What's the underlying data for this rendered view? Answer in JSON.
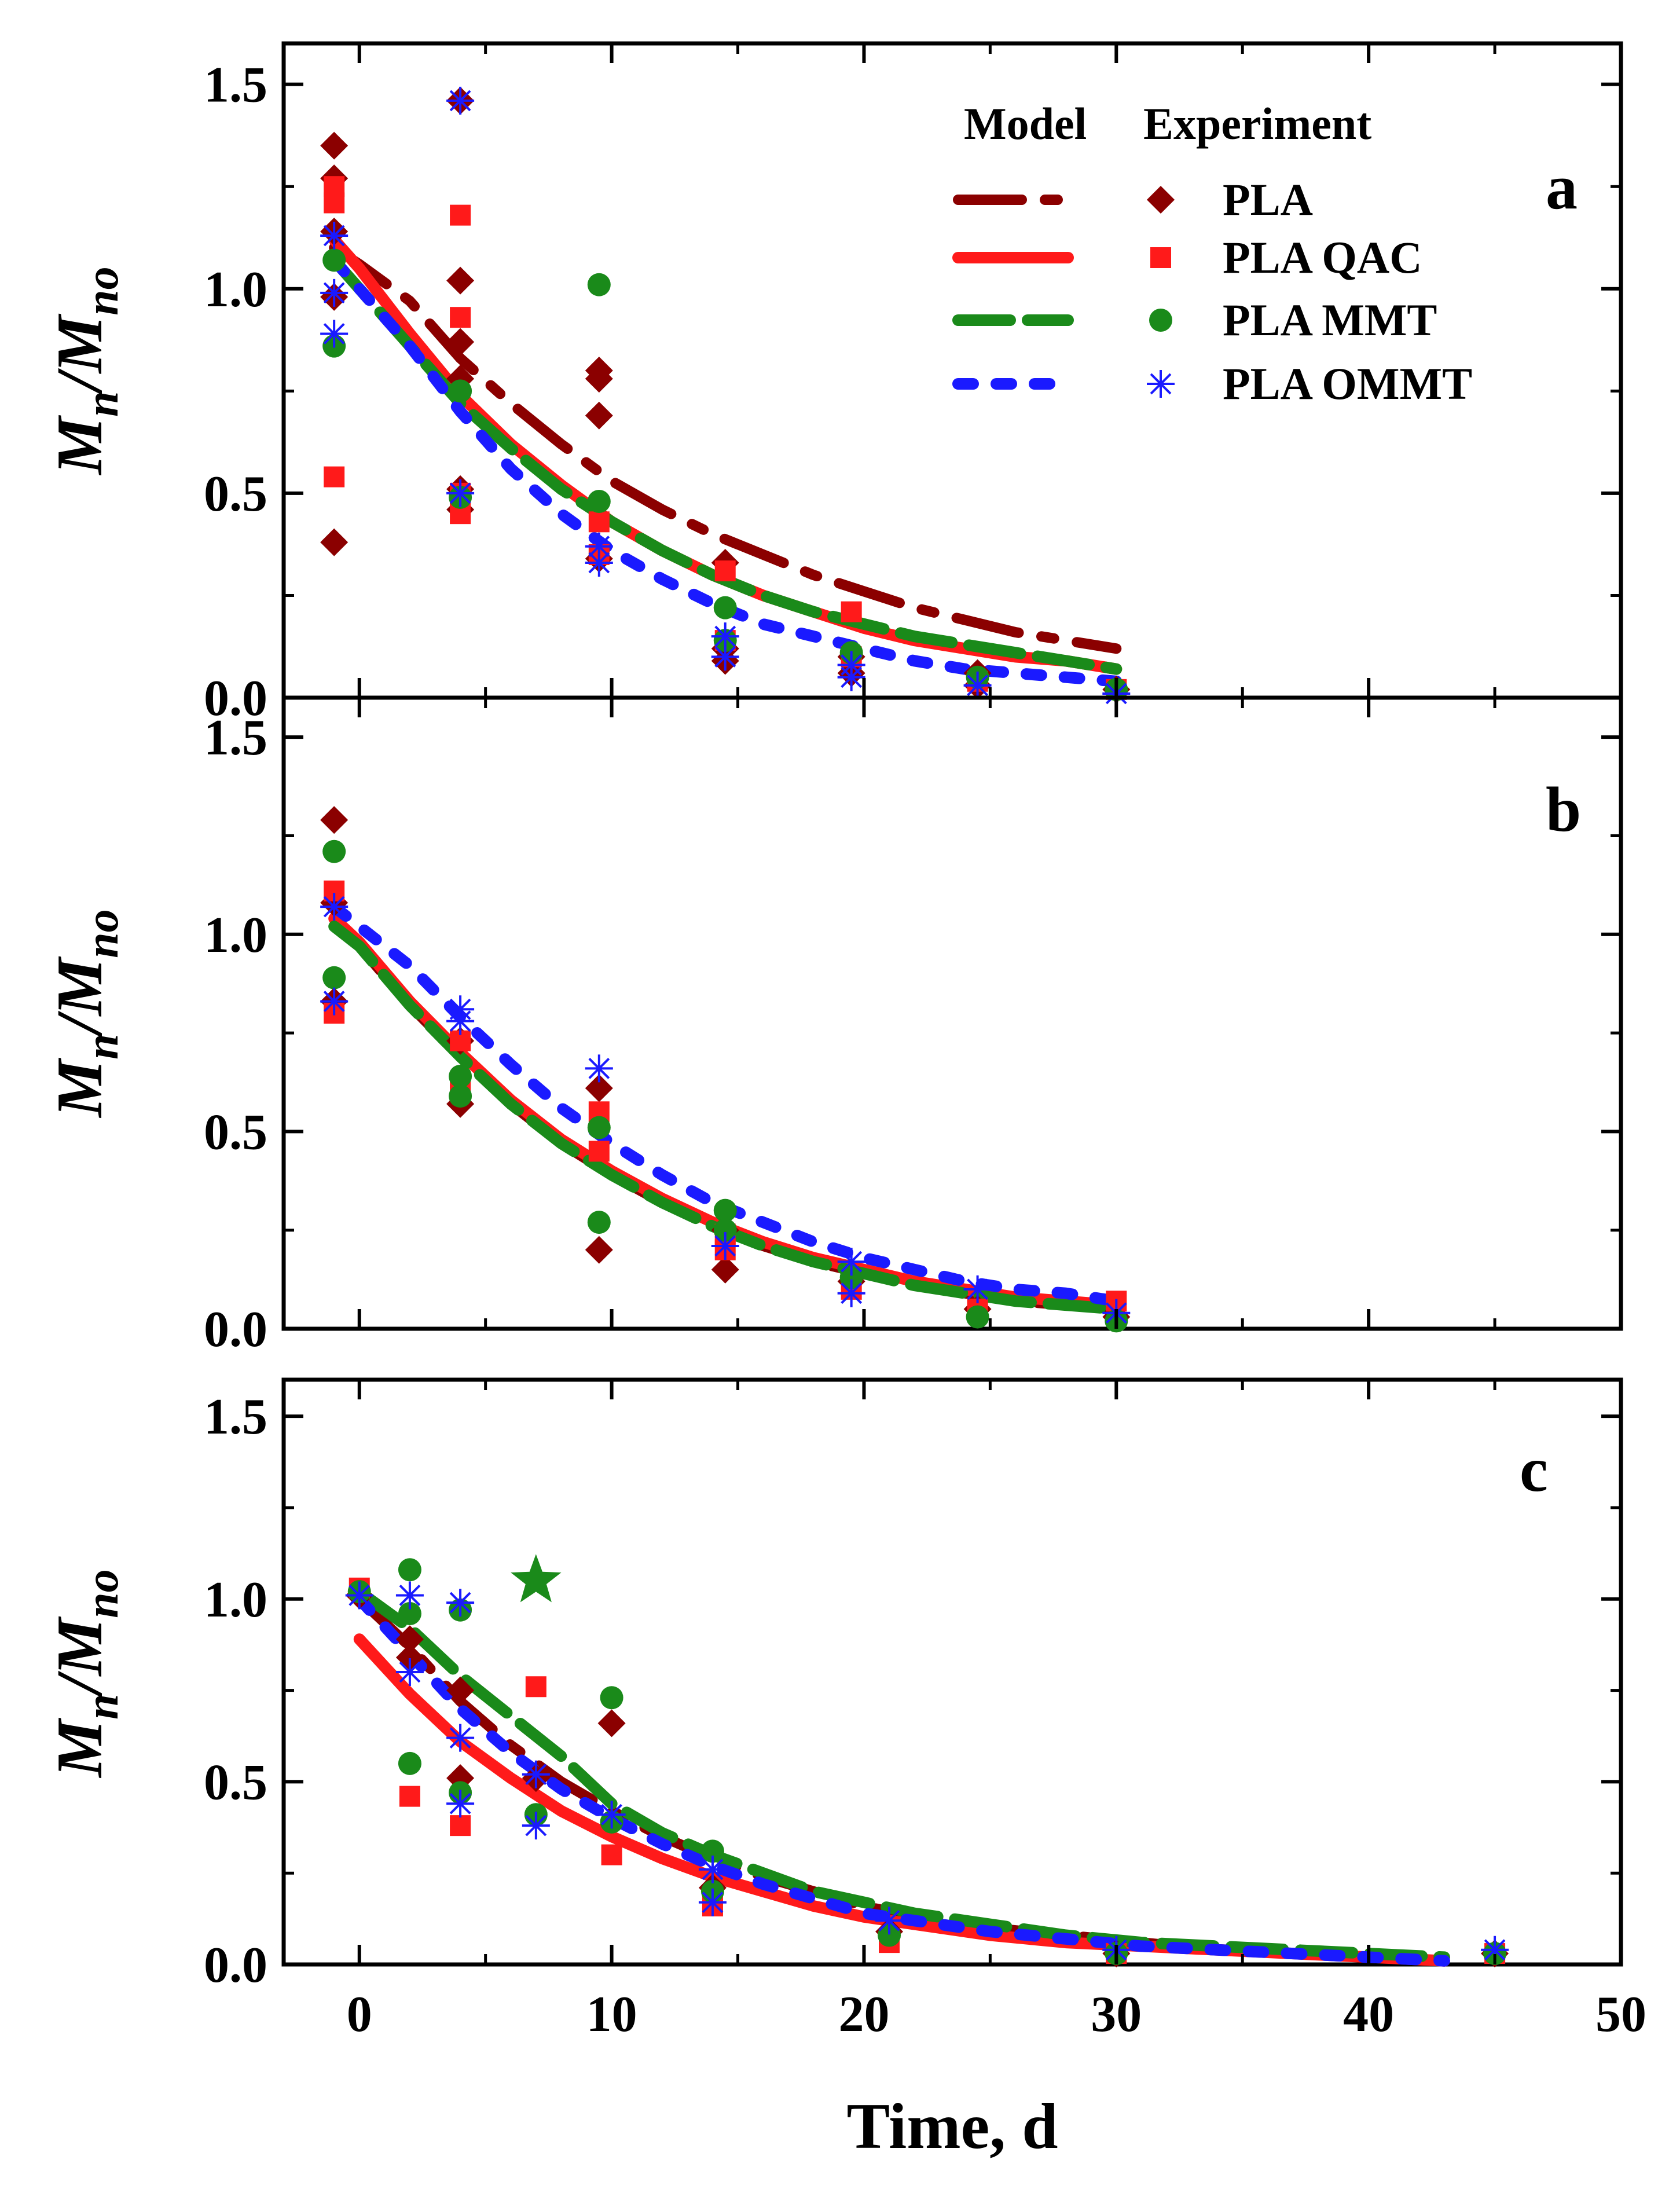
{
  "figure": {
    "xlabel": "Time, d",
    "ylabel_main": "M",
    "ylabel_sub1": "n",
    "ylabel_mid": "/M",
    "ylabel_sub2": "no",
    "legend": {
      "model_header": "Model",
      "experiment_header": "Experiment",
      "placement": "top-right of panel a"
    }
  },
  "colors": {
    "PLA": "#8b0000",
    "PLA QAC": "#ff1a1a",
    "PLA MMT": "#1a8a1a",
    "PLA OMMT": "#1a1aff"
  },
  "chart_data": [
    {
      "type": "scatter",
      "panel": "a",
      "xlim": [
        -3,
        50
      ],
      "ylim": [
        0,
        1.6
      ],
      "xticks": [
        0,
        10,
        20,
        30,
        40,
        50
      ],
      "yticks": [
        0.0,
        0.5,
        1.0,
        1.5
      ],
      "xtick_labels_visible": false,
      "grid": false,
      "series": [
        {
          "name": "PLA",
          "marker": "diamond",
          "x": [
            -1,
            -1,
            -1,
            -1,
            -1,
            4,
            4,
            4,
            4,
            4,
            4,
            9.5,
            9.5,
            9.5,
            9.5,
            14.5,
            14.5,
            14.5,
            19.5,
            19.5,
            24.5,
            24.5,
            30
          ],
          "y": [
            1.35,
            1.27,
            1.14,
            0.98,
            0.38,
            1.46,
            1.02,
            0.87,
            0.78,
            0.51,
            0.46,
            0.8,
            0.78,
            0.69,
            0.34,
            0.33,
            0.12,
            0.09,
            0.1,
            0.06,
            0.06,
            0.03,
            0.02
          ],
          "model": {
            "x": [
              -1,
              0,
              2,
              4,
              6,
              8,
              10,
              12,
              14,
              16,
              18,
              20,
              22,
              24,
              26,
              28,
              30
            ],
            "y": [
              1.1,
              1.06,
              0.97,
              0.83,
              0.72,
              0.62,
              0.53,
              0.46,
              0.4,
              0.35,
              0.3,
              0.26,
              0.22,
              0.19,
              0.16,
              0.14,
              0.12
            ]
          }
        },
        {
          "name": "PLA QAC",
          "marker": "square",
          "x": [
            -1,
            -1,
            -1,
            4,
            4,
            4,
            4,
            9.5,
            9.5,
            14.5,
            14.5,
            19.5,
            19.5,
            24.5,
            30
          ],
          "y": [
            1.25,
            1.21,
            0.54,
            1.18,
            0.93,
            0.5,
            0.45,
            0.43,
            0.35,
            0.31,
            0.14,
            0.21,
            0.1,
            0.04,
            0.02
          ],
          "model": {
            "x": [
              -1,
              0,
              2,
              4,
              6,
              8,
              10,
              12,
              14,
              16,
              18,
              20,
              22,
              24,
              26,
              28,
              30
            ],
            "y": [
              1.12,
              1.05,
              0.89,
              0.74,
              0.62,
              0.52,
              0.43,
              0.36,
              0.3,
              0.25,
              0.21,
              0.17,
              0.14,
              0.12,
              0.1,
              0.09,
              0.07
            ]
          }
        },
        {
          "name": "PLA MMT",
          "marker": "circle",
          "x": [
            -1,
            -1,
            4,
            4,
            9.5,
            9.5,
            14.5,
            14.5,
            19.5,
            24.5,
            30
          ],
          "y": [
            1.07,
            0.86,
            0.75,
            0.49,
            1.01,
            0.48,
            0.22,
            0.14,
            0.11,
            0.05,
            0.02
          ],
          "model": {
            "x": [
              -1,
              0,
              2,
              4,
              6,
              8,
              10,
              12,
              14,
              16,
              18,
              20,
              22,
              24,
              26,
              28,
              30
            ],
            "y": [
              1.07,
              1.0,
              0.86,
              0.72,
              0.61,
              0.51,
              0.43,
              0.36,
              0.3,
              0.25,
              0.21,
              0.18,
              0.15,
              0.13,
              0.11,
              0.09,
              0.07
            ]
          }
        },
        {
          "name": "PLA OMMT",
          "marker": "asterisk",
          "x": [
            -1,
            -1,
            -1,
            4,
            4,
            9.5,
            9.5,
            14.5,
            14.5,
            19.5,
            19.5,
            24.5,
            30
          ],
          "y": [
            1.13,
            0.99,
            0.89,
            1.46,
            0.5,
            0.37,
            0.33,
            0.15,
            0.1,
            0.08,
            0.05,
            0.03,
            0.01
          ],
          "model": {
            "x": [
              -1,
              0,
              2,
              4,
              6,
              8,
              10,
              12,
              14,
              16,
              18,
              20,
              22,
              24,
              26,
              28,
              30
            ],
            "y": [
              1.07,
              1.0,
              0.86,
              0.7,
              0.56,
              0.45,
              0.36,
              0.29,
              0.23,
              0.18,
              0.15,
              0.12,
              0.09,
              0.07,
              0.06,
              0.05,
              0.04
            ]
          }
        }
      ]
    },
    {
      "type": "scatter",
      "panel": "b",
      "xlim": [
        -3,
        50
      ],
      "ylim": [
        0,
        1.6
      ],
      "xticks": [
        0,
        10,
        20,
        30,
        40,
        50
      ],
      "yticks": [
        0.0,
        0.5,
        1.0,
        1.5
      ],
      "xtick_labels_visible": false,
      "grid": false,
      "series": [
        {
          "name": "PLA",
          "marker": "diamond",
          "x": [
            -1,
            -1,
            -1,
            4,
            4,
            9.5,
            9.5,
            14.5,
            14.5,
            19.5,
            24.5,
            30
          ],
          "y": [
            1.29,
            1.08,
            0.83,
            0.73,
            0.57,
            0.61,
            0.2,
            0.25,
            0.15,
            0.12,
            0.05,
            0.03
          ],
          "model": {
            "x": [
              -1,
              0,
              2,
              4,
              6,
              8,
              10,
              12,
              14,
              16,
              18,
              20,
              22,
              24,
              26,
              28,
              30
            ],
            "y": [
              1.02,
              0.97,
              0.82,
              0.69,
              0.57,
              0.47,
              0.39,
              0.32,
              0.26,
              0.21,
              0.17,
              0.14,
              0.11,
              0.09,
              0.07,
              0.06,
              0.05
            ]
          }
        },
        {
          "name": "PLA QAC",
          "marker": "square",
          "x": [
            -1,
            -1,
            4,
            4,
            9.5,
            9.5,
            14.5,
            14.5,
            19.5,
            24.5,
            30
          ],
          "y": [
            1.11,
            0.8,
            0.73,
            0.62,
            0.55,
            0.45,
            0.24,
            0.2,
            0.1,
            0.05,
            0.07
          ],
          "model": {
            "x": [
              -1,
              0,
              2,
              4,
              6,
              8,
              10,
              12,
              14,
              16,
              18,
              20,
              22,
              24,
              26,
              28,
              30
            ],
            "y": [
              1.04,
              0.98,
              0.83,
              0.7,
              0.58,
              0.48,
              0.4,
              0.33,
              0.27,
              0.22,
              0.18,
              0.15,
              0.12,
              0.1,
              0.08,
              0.07,
              0.06
            ]
          }
        },
        {
          "name": "PLA MMT",
          "marker": "circle",
          "x": [
            -1,
            -1,
            4,
            4,
            9.5,
            9.5,
            14.5,
            14.5,
            19.5,
            24.5,
            30
          ],
          "y": [
            1.21,
            0.89,
            0.64,
            0.59,
            0.51,
            0.27,
            0.3,
            0.25,
            0.13,
            0.03,
            0.02
          ],
          "model": {
            "x": [
              -1,
              0,
              2,
              4,
              6,
              8,
              10,
              12,
              14,
              16,
              18,
              20,
              22,
              24,
              26,
              28,
              30
            ],
            "y": [
              1.02,
              0.97,
              0.82,
              0.69,
              0.57,
              0.47,
              0.39,
              0.32,
              0.26,
              0.21,
              0.17,
              0.14,
              0.11,
              0.09,
              0.07,
              0.06,
              0.05
            ]
          }
        },
        {
          "name": "PLA OMMT",
          "marker": "asterisk",
          "x": [
            -1,
            -1,
            4,
            4,
            9.5,
            14.5,
            19.5,
            19.5,
            24.5,
            30
          ],
          "y": [
            1.07,
            0.83,
            0.81,
            0.78,
            0.66,
            0.21,
            0.17,
            0.09,
            0.1,
            0.04
          ],
          "model": {
            "x": [
              -1,
              0,
              2,
              4,
              6,
              8,
              10,
              12,
              14,
              16,
              18,
              20,
              22,
              24,
              26,
              28,
              30
            ],
            "y": [
              1.07,
              1.02,
              0.92,
              0.79,
              0.67,
              0.56,
              0.47,
              0.39,
              0.32,
              0.27,
              0.22,
              0.18,
              0.15,
              0.12,
              0.1,
              0.09,
              0.07
            ]
          }
        }
      ]
    },
    {
      "type": "scatter",
      "panel": "c",
      "xlim": [
        -3,
        50
      ],
      "ylim": [
        0,
        1.6
      ],
      "xticks": [
        0,
        10,
        20,
        30,
        40,
        50
      ],
      "yticks": [
        0.0,
        0.5,
        1.0,
        1.5
      ],
      "xtick_labels": [
        "0",
        "10",
        "20",
        "30",
        "40",
        "50"
      ],
      "grid": false,
      "annotations": [
        {
          "marker": "star",
          "x": 7,
          "y": 1.05,
          "color": "#1a8a1a"
        }
      ],
      "series": [
        {
          "name": "PLA",
          "marker": "diamond",
          "x": [
            0,
            2,
            2,
            4,
            4,
            7,
            10,
            14,
            21,
            30,
            45
          ],
          "y": [
            1.01,
            0.89,
            0.84,
            0.75,
            0.51,
            0.51,
            0.66,
            0.21,
            0.09,
            0.03,
            0.03
          ],
          "model": {
            "x": [
              0,
              2,
              4,
              6,
              8,
              10,
              12,
              14,
              16,
              18,
              20,
              22,
              25,
              28,
              31,
              34,
              37,
              40,
              43
            ],
            "y": [
              1.0,
              0.87,
              0.72,
              0.6,
              0.5,
              0.42,
              0.35,
              0.29,
              0.24,
              0.2,
              0.16,
              0.13,
              0.1,
              0.08,
              0.06,
              0.04,
              0.03,
              0.02,
              0.01
            ]
          }
        },
        {
          "name": "PLA QAC",
          "marker": "square",
          "x": [
            0,
            2,
            4,
            7,
            10,
            14,
            21,
            30,
            45
          ],
          "y": [
            1.03,
            0.46,
            0.38,
            0.76,
            0.3,
            0.16,
            0.06,
            0.03,
            0.03
          ],
          "model": {
            "x": [
              0,
              2,
              4,
              6,
              8,
              10,
              12,
              14,
              16,
              18,
              20,
              22,
              25,
              28,
              31,
              34,
              37,
              40,
              43
            ],
            "y": [
              0.89,
              0.74,
              0.61,
              0.51,
              0.42,
              0.35,
              0.29,
              0.24,
              0.2,
              0.16,
              0.13,
              0.11,
              0.08,
              0.06,
              0.05,
              0.04,
              0.03,
              0.02,
              0.01
            ]
          }
        },
        {
          "name": "PLA MMT",
          "marker": "circle",
          "x": [
            0,
            2,
            2,
            2,
            4,
            4,
            7,
            10,
            10,
            14,
            14,
            21,
            30,
            45
          ],
          "y": [
            1.02,
            1.08,
            0.96,
            0.55,
            0.97,
            0.47,
            0.41,
            0.73,
            0.39,
            0.31,
            0.2,
            0.08,
            0.03,
            0.03
          ],
          "model": {
            "x": [
              0,
              2,
              4,
              6,
              8,
              10,
              12,
              14,
              16,
              18,
              20,
              22,
              25,
              28,
              31,
              34,
              37,
              40,
              43
            ],
            "y": [
              1.02,
              0.92,
              0.79,
              0.68,
              0.57,
              0.44,
              0.36,
              0.3,
              0.25,
              0.2,
              0.17,
              0.14,
              0.11,
              0.08,
              0.06,
              0.05,
              0.04,
              0.03,
              0.02
            ]
          }
        },
        {
          "name": "PLA OMMT",
          "marker": "asterisk",
          "x": [
            0,
            2,
            2,
            4,
            4,
            4,
            7,
            7,
            10,
            14,
            14,
            21,
            30,
            45
          ],
          "y": [
            1.01,
            1.01,
            0.8,
            0.99,
            0.62,
            0.44,
            0.52,
            0.38,
            0.41,
            0.26,
            0.17,
            0.12,
            0.04,
            0.04
          ],
          "model": {
            "x": [
              0,
              2,
              4,
              6,
              8,
              10,
              12,
              14,
              16,
              18,
              20,
              22,
              25,
              28,
              31,
              34,
              37,
              40,
              43
            ],
            "y": [
              1.0,
              0.85,
              0.7,
              0.58,
              0.48,
              0.4,
              0.33,
              0.27,
              0.22,
              0.18,
              0.14,
              0.12,
              0.09,
              0.07,
              0.05,
              0.04,
              0.03,
              0.02,
              0.01
            ]
          }
        }
      ]
    }
  ]
}
